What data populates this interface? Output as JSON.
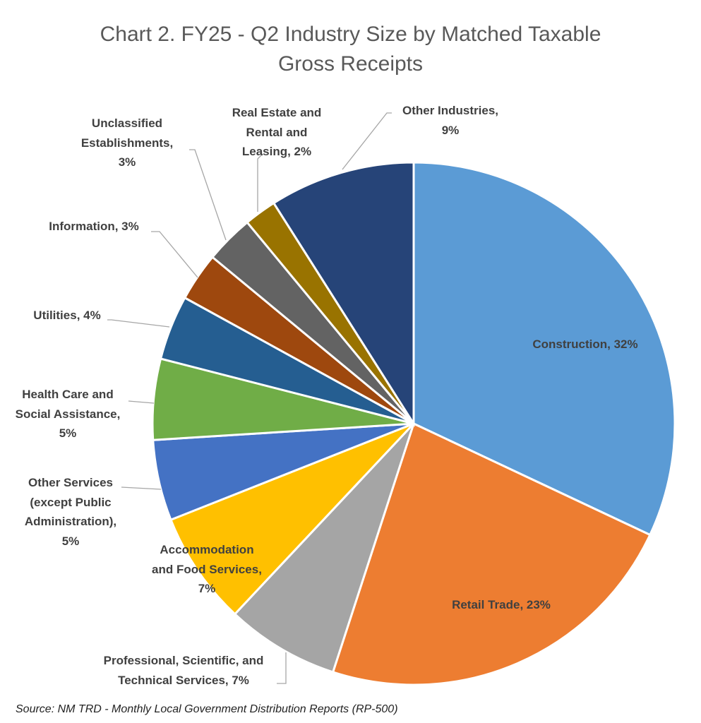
{
  "chart_data": {
    "type": "pie",
    "title": "Chart 2. FY25 - Q2 Industry Size by Matched Taxable\nGross Receipts",
    "start": "top",
    "direction": "clockwise",
    "slices": [
      {
        "name": "Construction",
        "value": 32,
        "label": "Construction, 32%",
        "color": "#5B9BD5"
      },
      {
        "name": "Retail Trade",
        "value": 23,
        "label": "Retail Trade, 23%",
        "color": "#ED7D31"
      },
      {
        "name": "Professional, Scientific, and Technical Services",
        "value": 7,
        "label": "Professional, Scientific, and\nTechnical Services, 7%",
        "color": "#A5A5A5"
      },
      {
        "name": "Accommodation and Food Services",
        "value": 7,
        "label": "Accommodation\nand Food Services,\n7%",
        "color": "#FFC000"
      },
      {
        "name": "Other Services (except Public Administration)",
        "value": 5,
        "label": "Other Services\n(except Public\nAdministration),\n5%",
        "color": "#4472C4"
      },
      {
        "name": "Health Care and Social Assistance",
        "value": 5,
        "label": "Health Care and\nSocial Assistance,\n5%",
        "color": "#70AD47"
      },
      {
        "name": "Utilities",
        "value": 4,
        "label": "Utilities, 4%",
        "color": "#255E91"
      },
      {
        "name": "Information",
        "value": 3,
        "label": "Information, 3%",
        "color": "#9E480E"
      },
      {
        "name": "Unclassified Establishments",
        "value": 3,
        "label": "Unclassified\nEstablishments,\n3%",
        "color": "#636363"
      },
      {
        "name": "Real Estate and Rental and Leasing",
        "value": 2,
        "label": "Real Estate and\nRental and\nLeasing, 2%",
        "color": "#997300"
      },
      {
        "name": "Other Industries",
        "value": 9,
        "label": "Other Industries,\n9%",
        "color": "#264478"
      }
    ],
    "legend": "none",
    "source": "Source: NM TRD - Monthly Local Government Distribution Reports (RP-500)"
  }
}
